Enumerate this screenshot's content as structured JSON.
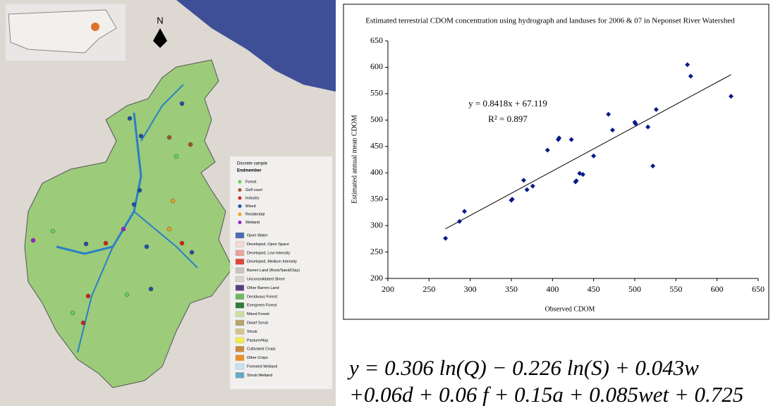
{
  "map": {
    "north_label": "N",
    "legend_title": "Discrete sample",
    "endmember_title": "Endmember",
    "endmembers": [
      {
        "label": "Forest",
        "color": "#5fd35f"
      },
      {
        "label": "Golf court",
        "color": "#a0522d"
      },
      {
        "label": "Industry",
        "color": "#d62020"
      },
      {
        "label": "Mixed",
        "color": "#1f4fa8"
      },
      {
        "label": "Residential",
        "color": "#f0a020"
      },
      {
        "label": "Wetland",
        "color": "#a020d0"
      }
    ],
    "landcover": [
      {
        "label": "Open Water",
        "color": "#4a6bb0"
      },
      {
        "label": "Developed, Open Space",
        "color": "#f3d9d5"
      },
      {
        "label": "Developed, Low Intensity",
        "color": "#eba29a"
      },
      {
        "label": "Developed, Medium Intensity",
        "color": "#e0473c"
      },
      {
        "label": "Barren Land (Rock/Sand/Clay)",
        "color": "#c9c4bd"
      },
      {
        "label": "Unconsolidated Shore",
        "color": "#d8d4cf"
      },
      {
        "label": "Other Barren Land",
        "color": "#5a3f7a"
      },
      {
        "label": "Deciduous Forest",
        "color": "#70b860"
      },
      {
        "label": "Evergreen Forest",
        "color": "#2e7d3a"
      },
      {
        "label": "Mixed Forest",
        "color": "#c8e0a0"
      },
      {
        "label": "Dwarf Scrub",
        "color": "#b7a46a"
      },
      {
        "label": "Shrub",
        "color": "#d6c48a"
      },
      {
        "label": "Pasture/Hay",
        "color": "#f2ee4a"
      },
      {
        "label": "Cultivated Crops",
        "color": "#c98a3a"
      },
      {
        "label": "Other Crops",
        "color": "#e8902a"
      },
      {
        "label": "Forested Wetland",
        "color": "#c7e4f2"
      },
      {
        "label": "Shrub Wetland",
        "color": "#6aa6c8"
      }
    ]
  },
  "chart_data": {
    "type": "scatter",
    "title": "Estimated terrestrial CDOM concentration using hydrograph and landuses for 2006 & 07 in Neponset River Watershed",
    "x_label": "Observed CDOM",
    "y_label": "Estimated annual mean CDOM",
    "x": [
      270,
      287,
      293,
      350,
      351,
      365,
      369,
      376,
      394,
      407,
      408,
      423,
      428,
      429,
      433,
      437,
      450,
      468,
      473,
      500,
      501,
      516,
      522,
      526,
      564,
      568,
      617
    ],
    "values": [
      276,
      308,
      327,
      348,
      350,
      386,
      368,
      375,
      443,
      463,
      466,
      463,
      383,
      385,
      399,
      397,
      432,
      511,
      481,
      496,
      493,
      487,
      413,
      520,
      605,
      583,
      545
    ],
    "color": "#0a1a8c",
    "trendline": {
      "x": [
        270,
        617
      ],
      "y": [
        294,
        586
      ],
      "color": "#000000"
    },
    "annotations": [
      "y = 0.8418x + 67.119",
      "R² = 0.897"
    ],
    "xlim": [
      200,
      650
    ],
    "xticks": [
      200,
      250,
      300,
      350,
      400,
      450,
      500,
      550,
      600,
      650
    ],
    "ylim": [
      200,
      650
    ],
    "yticks": [
      200,
      250,
      300,
      350,
      400,
      450,
      500,
      550,
      600,
      650
    ]
  },
  "equation": {
    "lines": [
      "y = 0.306 ln(Q) − 0.226 ln(S) + 0.043w",
      "+0.06d + 0.06 f + 0.15a + 0.085wet + 0.725"
    ]
  }
}
